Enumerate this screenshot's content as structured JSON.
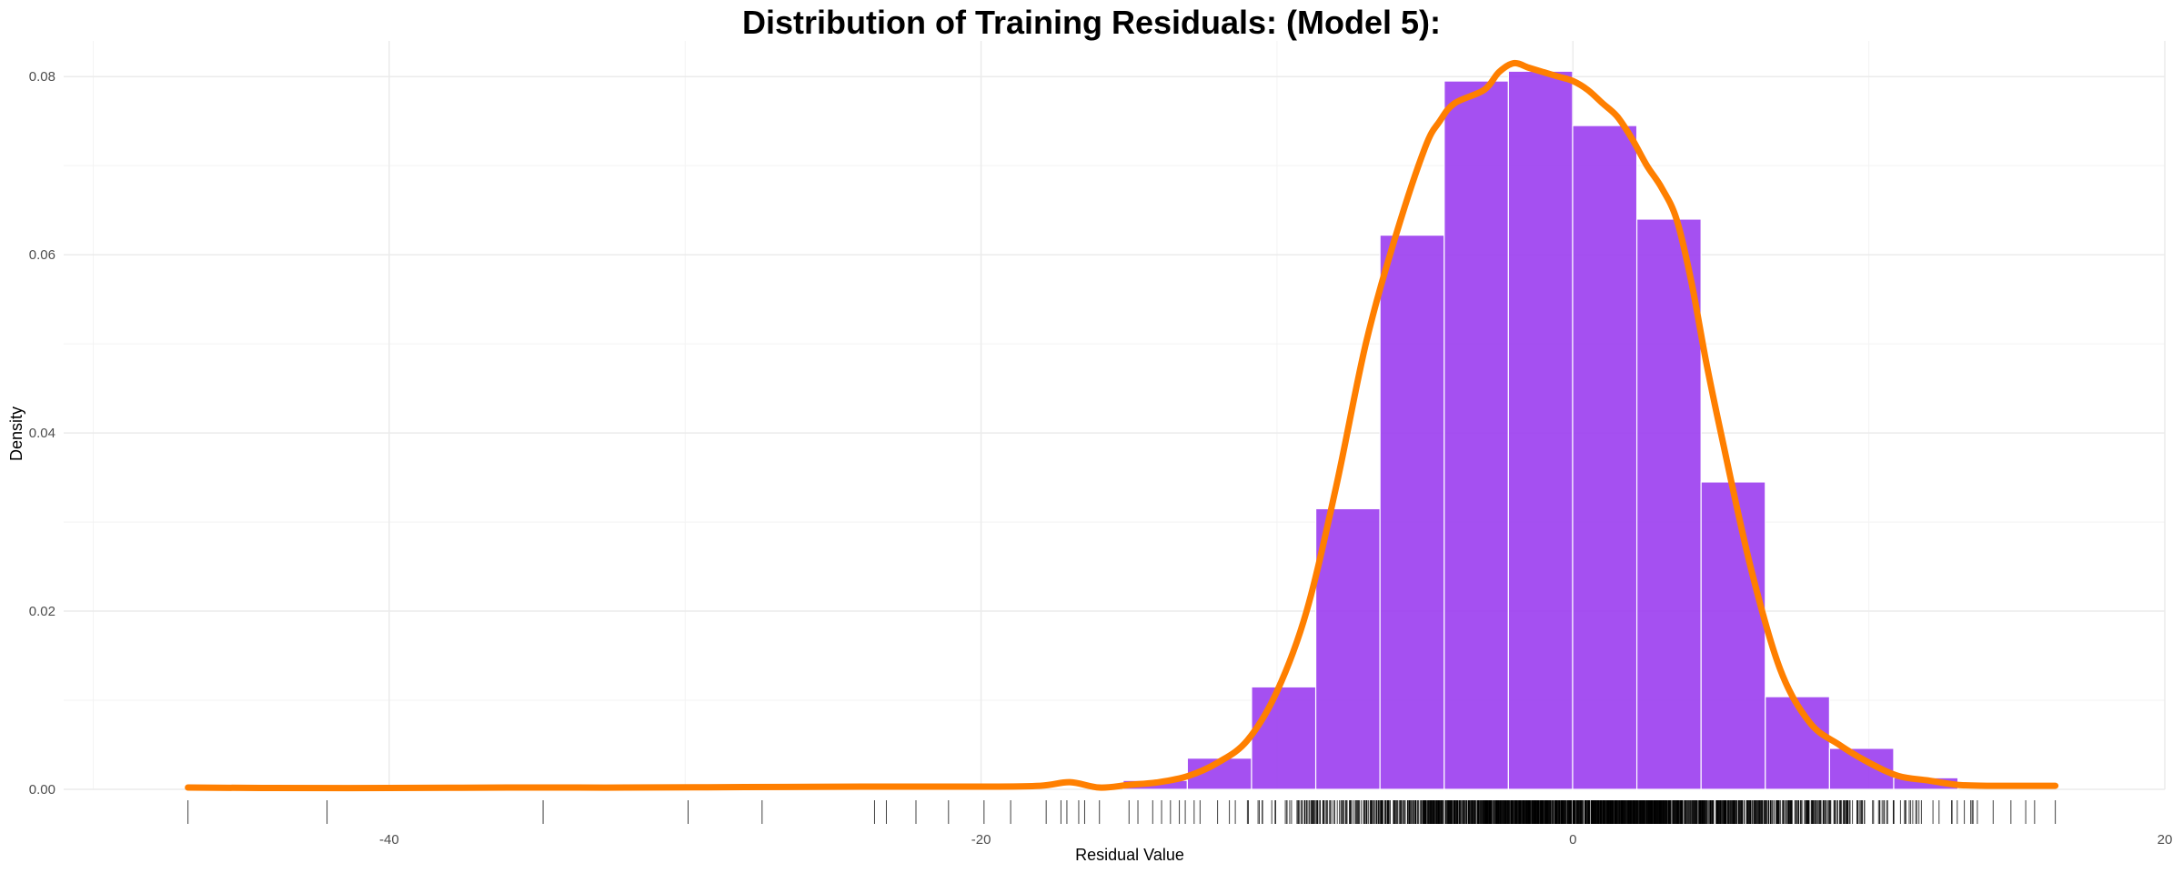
{
  "chart_data": {
    "type": "bar",
    "title": "Distribution of Training Residuals: (Model 5):",
    "xlabel": "Residual Value",
    "ylabel": "Density",
    "xlim": [
      -51,
      20
    ],
    "ylim": [
      0,
      0.084
    ],
    "x_ticks": [
      -40,
      -20,
      0,
      20
    ],
    "y_ticks": [
      0.0,
      0.02,
      0.04,
      0.06,
      0.08
    ],
    "x_tick_labels": [
      "-40",
      "-20",
      "0",
      "20"
    ],
    "y_tick_labels": [
      "0.00",
      "0.02",
      "0.04",
      "0.06",
      "0.08"
    ],
    "grid": true,
    "colors": {
      "bars": "#9b3def",
      "density": "#ff7f00",
      "rug": "#000000",
      "grid": "#ebebeb"
    },
    "histogram": {
      "bin_width": 2.17,
      "bins": [
        {
          "x_start": -15.2,
          "x_end": -13.03,
          "density": 0.001
        },
        {
          "x_start": -13.03,
          "x_end": -10.86,
          "density": 0.0035
        },
        {
          "x_start": -10.86,
          "x_end": -8.69,
          "density": 0.0115
        },
        {
          "x_start": -8.69,
          "x_end": -6.52,
          "density": 0.0315
        },
        {
          "x_start": -6.52,
          "x_end": -4.35,
          "density": 0.0622
        },
        {
          "x_start": -4.35,
          "x_end": -2.18,
          "density": 0.0795
        },
        {
          "x_start": -2.18,
          "x_end": -0.01,
          "density": 0.0806
        },
        {
          "x_start": -0.01,
          "x_end": 2.16,
          "density": 0.0745
        },
        {
          "x_start": 2.16,
          "x_end": 4.33,
          "density": 0.064
        },
        {
          "x_start": 4.33,
          "x_end": 6.5,
          "density": 0.0345
        },
        {
          "x_start": 6.5,
          "x_end": 8.67,
          "density": 0.0104
        },
        {
          "x_start": 8.67,
          "x_end": 10.84,
          "density": 0.0046
        },
        {
          "x_start": 10.84,
          "x_end": 13.01,
          "density": 0.0013
        }
      ]
    },
    "density": {
      "x": [
        -46.8,
        -44,
        -40,
        -36,
        -32,
        -28,
        -24,
        -20,
        -18,
        -17,
        -16,
        -15,
        -14,
        -13,
        -12,
        -11,
        -10,
        -9,
        -8,
        -7,
        -6,
        -5,
        -4.5,
        -4,
        -3,
        -2.5,
        -2,
        -1.5,
        -1,
        -0.5,
        0,
        0.5,
        1,
        1.5,
        2,
        2.5,
        3,
        3.5,
        4,
        4.5,
        5,
        6,
        7,
        8,
        9,
        10,
        11,
        12,
        13,
        14,
        15,
        16.3
      ],
      "y": [
        0.0002,
        0.00015,
        0.00015,
        0.0002,
        0.0002,
        0.00025,
        0.0003,
        0.0003,
        0.0004,
        0.0008,
        0.0002,
        0.0005,
        0.0008,
        0.0015,
        0.003,
        0.0055,
        0.011,
        0.02,
        0.034,
        0.05,
        0.062,
        0.072,
        0.075,
        0.077,
        0.0785,
        0.0805,
        0.0815,
        0.081,
        0.0805,
        0.08,
        0.0795,
        0.0785,
        0.077,
        0.0755,
        0.073,
        0.07,
        0.0675,
        0.064,
        0.057,
        0.048,
        0.04,
        0.025,
        0.0135,
        0.0075,
        0.005,
        0.003,
        0.0015,
        0.001,
        0.0005,
        0.0004,
        0.0004,
        0.0004
      ]
    },
    "rug": {
      "outlier_x": [
        -46.8,
        -42.1,
        -34.8,
        -29.9,
        -27.4,
        -23.6,
        -23.2,
        -22.2,
        -21.1,
        -19.9,
        -19.0,
        -17.8,
        -17.3,
        -17.1,
        -16.7,
        -16.5,
        -16.0,
        -15.0,
        -14.7,
        -14.2,
        -13.9,
        -13.6,
        -13.3,
        -13.1,
        -12.8,
        -12.6,
        14.2,
        14.8,
        15.3,
        15.6,
        16.3
      ],
      "dense_range": [
        -12.2,
        13.9
      ]
    }
  }
}
